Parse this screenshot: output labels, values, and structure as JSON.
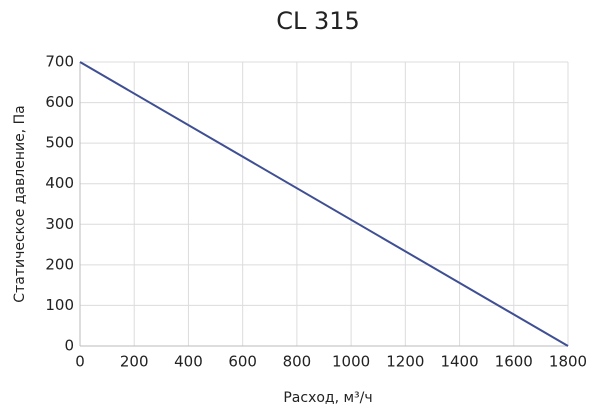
{
  "chart_data": {
    "type": "line",
    "title": "CL 315",
    "x_label": "Расход, м³/ч",
    "y_label": "Статическое давление, Па",
    "x": [
      0,
      1800
    ],
    "values": [
      700,
      0
    ],
    "color": "#3f4f94",
    "xlim": [
      0,
      1800
    ],
    "xticks": [
      0,
      200,
      400,
      600,
      800,
      1000,
      1200,
      1400,
      1600,
      1800
    ],
    "ylim": [
      0,
      700
    ],
    "yticks": [
      0,
      100,
      200,
      300,
      400,
      500,
      600,
      700
    ],
    "grid": true
  }
}
